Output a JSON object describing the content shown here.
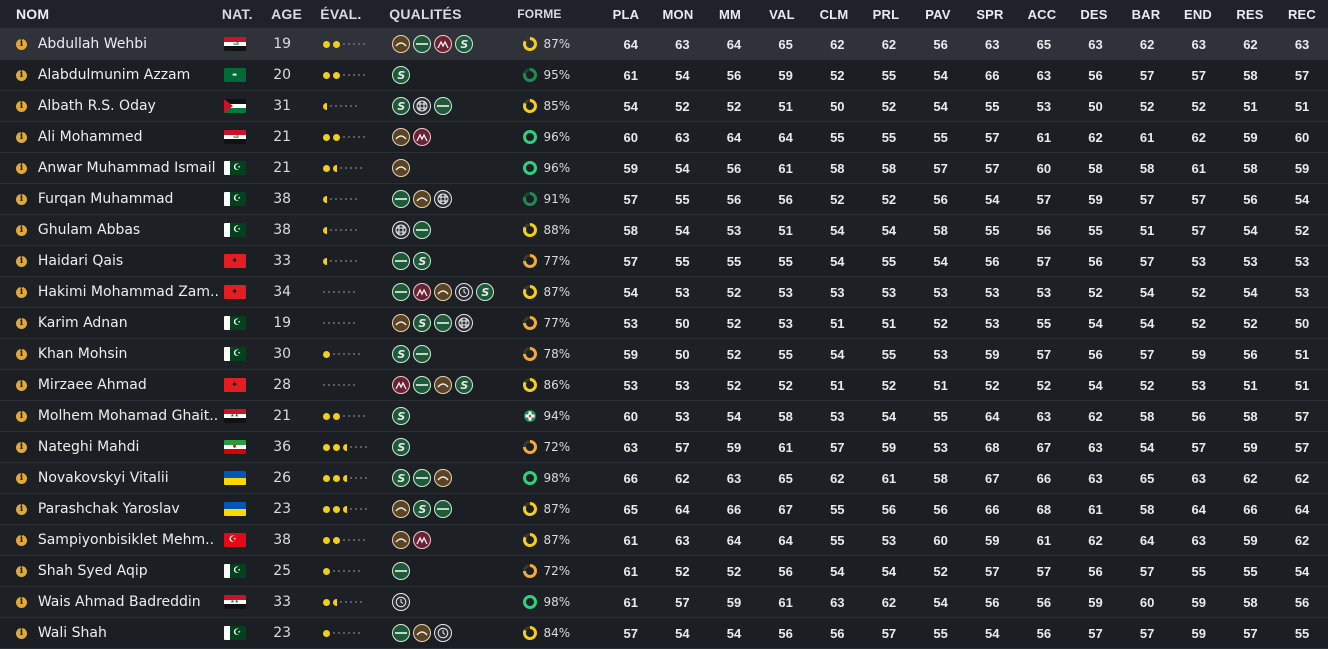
{
  "columns": {
    "name": "NOM",
    "nat": "NAT.",
    "age": "AGE",
    "eval": "ÉVAL.",
    "qual": "QUALITÉS",
    "form": "FORME",
    "stats": [
      "PLA",
      "MON",
      "MM",
      "VAL",
      "CLM",
      "PRL",
      "PAV",
      "SPR",
      "ACC",
      "DES",
      "BAR",
      "END",
      "RES",
      "REC"
    ]
  },
  "colors": {
    "form_yellow": "#f2cc1e",
    "form_orange": "#f0a93a",
    "form_green": "#2fd17a",
    "form_dark_green": "#1f8a52"
  },
  "players": [
    {
      "name": "Abdullah Wehbi",
      "flag": "iraq",
      "age": "19",
      "eval": [
        2,
        0
      ],
      "qual": [
        "ellipse-brown",
        "bar-green",
        "mountain-red",
        "s-green"
      ],
      "form_icon": "donut-yellow",
      "form": "87%",
      "stats": [
        "64",
        "63",
        "64",
        "65",
        "62",
        "62",
        "56",
        "63",
        "65",
        "63",
        "62",
        "63",
        "62",
        "63"
      ],
      "selected": true
    },
    {
      "name": "Alabdulmunim Azzam",
      "flag": "saudi",
      "age": "20",
      "eval": [
        2,
        0
      ],
      "qual": [
        "s-green"
      ],
      "form_icon": "donut-dark-green",
      "form": "95%",
      "stats": [
        "61",
        "54",
        "56",
        "59",
        "52",
        "55",
        "54",
        "66",
        "63",
        "56",
        "57",
        "57",
        "58",
        "57"
      ]
    },
    {
      "name": "Albath R.S. Oday",
      "flag": "palestine",
      "age": "31",
      "eval": [
        0,
        1
      ],
      "qual": [
        "s-green",
        "cobble-dark",
        "bar-green"
      ],
      "form_icon": "donut-yellow",
      "form": "85%",
      "stats": [
        "54",
        "52",
        "52",
        "51",
        "50",
        "52",
        "54",
        "55",
        "53",
        "50",
        "52",
        "52",
        "51",
        "51"
      ]
    },
    {
      "name": "Ali Mohammed",
      "flag": "iraq",
      "age": "21",
      "eval": [
        2,
        0
      ],
      "qual": [
        "ellipse-brown",
        "mountain-red"
      ],
      "form_icon": "ring-green",
      "form": "96%",
      "stats": [
        "60",
        "63",
        "64",
        "64",
        "55",
        "55",
        "55",
        "57",
        "61",
        "62",
        "61",
        "62",
        "59",
        "60"
      ]
    },
    {
      "name": "Anwar Muhammad Ismail",
      "flag": "pakistan",
      "age": "21",
      "eval": [
        1,
        1
      ],
      "qual": [
        "ellipse-brown"
      ],
      "form_icon": "ring-green",
      "form": "96%",
      "stats": [
        "59",
        "54",
        "56",
        "61",
        "58",
        "58",
        "57",
        "57",
        "60",
        "58",
        "58",
        "61",
        "58",
        "59"
      ]
    },
    {
      "name": "Furqan Muhammad",
      "flag": "pakistan",
      "age": "38",
      "eval": [
        0,
        1
      ],
      "qual": [
        "bar-green",
        "ellipse-brown",
        "cobble-dark"
      ],
      "form_icon": "donut-dark-green",
      "form": "91%",
      "stats": [
        "57",
        "55",
        "56",
        "56",
        "52",
        "52",
        "56",
        "54",
        "57",
        "59",
        "57",
        "57",
        "56",
        "54"
      ]
    },
    {
      "name": "Ghulam Abbas",
      "flag": "pakistan",
      "age": "38",
      "eval": [
        0,
        1
      ],
      "qual": [
        "cobble-dark",
        "bar-green"
      ],
      "form_icon": "donut-yellow",
      "form": "88%",
      "stats": [
        "58",
        "54",
        "53",
        "51",
        "54",
        "54",
        "58",
        "55",
        "56",
        "55",
        "51",
        "57",
        "54",
        "52"
      ]
    },
    {
      "name": "Haidari Qais",
      "flag": "albania",
      "age": "33",
      "eval": [
        0,
        1
      ],
      "qual": [
        "bar-green",
        "s-green"
      ],
      "form_icon": "donut-orange",
      "form": "77%",
      "stats": [
        "57",
        "55",
        "55",
        "55",
        "54",
        "55",
        "54",
        "56",
        "57",
        "56",
        "57",
        "53",
        "53",
        "53"
      ]
    },
    {
      "name": "Hakimi Mohammad Zam..",
      "flag": "albania",
      "age": "34",
      "eval": [
        0,
        0
      ],
      "qual": [
        "bar-green",
        "mountain-red",
        "ellipse-brown",
        "clock-dark",
        "s-green"
      ],
      "form_icon": "donut-yellow",
      "form": "87%",
      "stats": [
        "54",
        "53",
        "52",
        "53",
        "53",
        "53",
        "53",
        "53",
        "53",
        "52",
        "54",
        "52",
        "54",
        "53"
      ]
    },
    {
      "name": "Karim Adnan",
      "flag": "pakistan",
      "age": "19",
      "eval": [
        0,
        0
      ],
      "qual": [
        "ellipse-brown",
        "s-green",
        "bar-green",
        "cobble-dark"
      ],
      "form_icon": "donut-orange",
      "form": "77%",
      "stats": [
        "53",
        "50",
        "52",
        "53",
        "51",
        "51",
        "52",
        "53",
        "55",
        "54",
        "54",
        "52",
        "52",
        "50"
      ]
    },
    {
      "name": "Khan Mohsin",
      "flag": "pakistan",
      "age": "30",
      "eval": [
        1,
        0
      ],
      "qual": [
        "s-green",
        "bar-green"
      ],
      "form_icon": "donut-orange",
      "form": "78%",
      "stats": [
        "59",
        "50",
        "52",
        "55",
        "54",
        "55",
        "53",
        "59",
        "57",
        "56",
        "57",
        "59",
        "56",
        "51"
      ]
    },
    {
      "name": "Mirzaee Ahmad",
      "flag": "albania",
      "age": "28",
      "eval": [
        0,
        0
      ],
      "qual": [
        "mountain-red",
        "bar-green",
        "ellipse-brown",
        "s-green"
      ],
      "form_icon": "donut-yellow",
      "form": "86%",
      "stats": [
        "53",
        "53",
        "52",
        "52",
        "51",
        "52",
        "51",
        "52",
        "52",
        "54",
        "52",
        "53",
        "51",
        "51"
      ]
    },
    {
      "name": "Molhem Mohamad Ghait..",
      "flag": "syria",
      "age": "21",
      "eval": [
        2,
        0
      ],
      "qual": [
        "s-green"
      ],
      "form_icon": "cross-green",
      "form": "94%",
      "stats": [
        "60",
        "53",
        "54",
        "58",
        "53",
        "54",
        "55",
        "64",
        "63",
        "62",
        "58",
        "56",
        "58",
        "57"
      ]
    },
    {
      "name": "Nateghi Mahdi",
      "flag": "iran",
      "age": "36",
      "eval": [
        2,
        1
      ],
      "qual": [
        "s-green"
      ],
      "form_icon": "donut-orange",
      "form": "72%",
      "stats": [
        "63",
        "57",
        "59",
        "61",
        "57",
        "59",
        "53",
        "68",
        "67",
        "63",
        "54",
        "57",
        "59",
        "57"
      ]
    },
    {
      "name": "Novakovskyi Vitalii",
      "flag": "ukraine",
      "age": "26",
      "eval": [
        2,
        1
      ],
      "qual": [
        "s-green",
        "bar-green",
        "ellipse-brown"
      ],
      "form_icon": "ring-green",
      "form": "98%",
      "stats": [
        "66",
        "62",
        "63",
        "65",
        "62",
        "61",
        "58",
        "67",
        "66",
        "63",
        "65",
        "63",
        "62",
        "62"
      ]
    },
    {
      "name": "Parashchak Yaroslav",
      "flag": "ukraine",
      "age": "23",
      "eval": [
        2,
        1
      ],
      "qual": [
        "ellipse-brown",
        "s-green",
        "bar-green"
      ],
      "form_icon": "donut-yellow",
      "form": "87%",
      "stats": [
        "65",
        "64",
        "66",
        "67",
        "55",
        "56",
        "56",
        "66",
        "68",
        "61",
        "58",
        "64",
        "66",
        "64"
      ]
    },
    {
      "name": "Sampiyonbisiklet Mehm..",
      "flag": "turkey",
      "age": "38",
      "eval": [
        2,
        0
      ],
      "qual": [
        "ellipse-brown",
        "mountain-red"
      ],
      "form_icon": "donut-yellow",
      "form": "87%",
      "stats": [
        "61",
        "63",
        "64",
        "64",
        "55",
        "53",
        "60",
        "59",
        "61",
        "62",
        "64",
        "63",
        "59",
        "62"
      ]
    },
    {
      "name": "Shah Syed Aqip",
      "flag": "pakistan",
      "age": "25",
      "eval": [
        1,
        0
      ],
      "qual": [
        "bar-green"
      ],
      "form_icon": "donut-orange",
      "form": "72%",
      "stats": [
        "61",
        "52",
        "52",
        "56",
        "54",
        "54",
        "52",
        "57",
        "57",
        "56",
        "57",
        "55",
        "55",
        "54"
      ]
    },
    {
      "name": "Wais Ahmad Badreddin",
      "flag": "syria",
      "age": "33",
      "eval": [
        1,
        1
      ],
      "qual": [
        "clock-dark"
      ],
      "form_icon": "ring-green",
      "form": "98%",
      "stats": [
        "61",
        "57",
        "59",
        "61",
        "63",
        "62",
        "54",
        "56",
        "56",
        "59",
        "60",
        "59",
        "58",
        "56"
      ]
    },
    {
      "name": "Wali Shah",
      "flag": "pakistan",
      "age": "23",
      "eval": [
        1,
        0
      ],
      "qual": [
        "bar-green",
        "ellipse-brown",
        "clock-dark"
      ],
      "form_icon": "donut-yellow",
      "form": "84%",
      "stats": [
        "57",
        "54",
        "54",
        "56",
        "56",
        "57",
        "55",
        "54",
        "56",
        "57",
        "57",
        "59",
        "57",
        "55"
      ]
    }
  ]
}
